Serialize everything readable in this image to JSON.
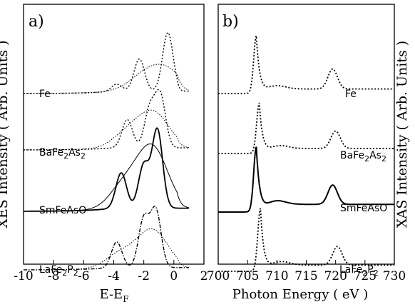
{
  "chart_data": [
    {
      "type": "line",
      "panel_label": "a)",
      "xlabel": "E-E",
      "xlabel_sub": "F",
      "ylabel": "XES Intensity ( Arb. Units )",
      "xlim": [
        -10,
        2
      ],
      "xticks": [
        "-10",
        "-8",
        "-6",
        "-4",
        "-2",
        "0",
        "2"
      ],
      "tick_values": [
        -10,
        -8,
        -6,
        -4,
        -2,
        0,
        2
      ],
      "series": [
        {
          "name": "Fe",
          "label_parts": [
            {
              "t": "Fe",
              "sub": false
            }
          ],
          "style": "dotted",
          "peaks_measured": [
            [
              -0.4,
              1.0
            ],
            [
              -2.3,
              0.55
            ],
            [
              -3.8,
              0.12
            ]
          ],
          "peaks_calc": [
            [
              -0.5,
              0.35
            ],
            [
              -2.0,
              0.25
            ]
          ]
        },
        {
          "name": "BaFe2As2",
          "label_parts": [
            {
              "t": "BaFe",
              "sub": false
            },
            {
              "t": "2",
              "sub": true
            },
            {
              "t": "As",
              "sub": false
            },
            {
              "t": "2",
              "sub": true
            }
          ],
          "style": "dotted",
          "peaks_measured": [
            [
              -0.9,
              1.0
            ],
            [
              -1.6,
              0.75
            ],
            [
              -3.1,
              0.55
            ]
          ],
          "peaks_calc": [
            [
              -1.3,
              0.65
            ],
            [
              -3.0,
              0.3
            ]
          ]
        },
        {
          "name": "SmFeAsO",
          "label_parts": [
            {
              "t": "SmFeAsO",
              "sub": false
            }
          ],
          "style": "solid",
          "peaks_measured": [
            [
              -1.1,
              1.0
            ],
            [
              -2.0,
              0.55
            ],
            [
              -3.5,
              0.45
            ]
          ],
          "peaks_calc": [
            [
              -1.4,
              0.75
            ],
            [
              -3.2,
              0.3
            ]
          ]
        },
        {
          "name": "LaFe2P2",
          "label_parts": [
            {
              "t": "LaFe",
              "sub": false
            },
            {
              "t": "2",
              "sub": true
            },
            {
              "t": "P",
              "sub": false
            },
            {
              "t": "2",
              "sub": true
            }
          ],
          "style": "dashdot",
          "peaks_measured": [
            [
              -1.2,
              1.0
            ],
            [
              -2.0,
              0.85
            ],
            [
              -3.8,
              0.45
            ]
          ],
          "peaks_calc": [
            [
              -1.4,
              0.65
            ],
            [
              -3.5,
              0.25
            ]
          ]
        }
      ]
    },
    {
      "type": "line",
      "panel_label": "b)",
      "xlabel": "Photon Energy ( eV )",
      "ylabel": "XAS Intensity ( Arb. Units )",
      "xlim": [
        700,
        730
      ],
      "xticks": [
        "700",
        "705",
        "710",
        "715",
        "720",
        "725",
        "730"
      ],
      "tick_values": [
        700,
        705,
        710,
        715,
        720,
        725,
        730
      ],
      "series": [
        {
          "name": "Fe",
          "label_parts": [
            {
              "t": "Fe",
              "sub": false
            }
          ],
          "style": "dotted",
          "l3_energy": 706.5,
          "l2_energy": 719.5,
          "l3_height": 1.0,
          "l2_height": 0.35,
          "step": 0.08
        },
        {
          "name": "BaFe2As2",
          "label_parts": [
            {
              "t": "BaFe",
              "sub": false
            },
            {
              "t": "2",
              "sub": true
            },
            {
              "t": "As",
              "sub": false
            },
            {
              "t": "2",
              "sub": true
            }
          ],
          "style": "dotted",
          "l3_energy": 707.0,
          "l2_energy": 720.0,
          "l3_height": 1.0,
          "l2_height": 0.35,
          "step": 0.1
        },
        {
          "name": "SmFeAsO",
          "label_parts": [
            {
              "t": "SmFeAsO",
              "sub": false
            }
          ],
          "style": "solid",
          "l3_energy": 706.5,
          "l2_energy": 719.5,
          "l3_height": 1.0,
          "l2_height": 0.3,
          "step": 0.12
        },
        {
          "name": "LaFe2P2",
          "label_parts": [
            {
              "t": "LaFe",
              "sub": false
            },
            {
              "t": "2",
              "sub": true
            },
            {
              "t": "P",
              "sub": false
            },
            {
              "t": "2",
              "sub": true
            }
          ],
          "style": "dotted",
          "l3_energy": 707.2,
          "l2_energy": 720.3,
          "l3_height": 1.0,
          "l2_height": 0.3,
          "step": 0.1
        }
      ]
    }
  ]
}
